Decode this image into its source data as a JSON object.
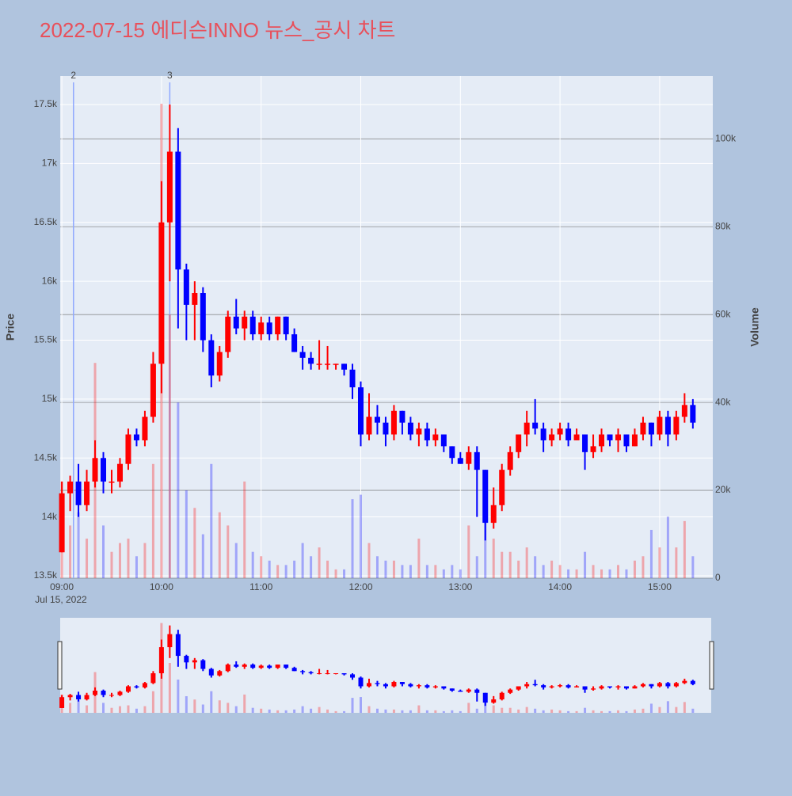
{
  "chart_data": {
    "type": "candlestick",
    "title": "2022-07-15 에디슨INNO 뉴스_공시 차트",
    "y_label": "Price",
    "y2_label": "Volume",
    "x_date_label": "Jul 15, 2022",
    "increasing_color": "#ff0000",
    "decreasing_color": "#0000ff",
    "grid": true,
    "range_slider": true,
    "xlim": [
      "2022-07-15 08:59",
      "2022-07-15 15:32"
    ],
    "xticks": [
      {
        "value": "2022-07-15 09:00",
        "label": "09:00"
      },
      {
        "value": "2022-07-15 10:00",
        "label": "10:00"
      },
      {
        "value": "2022-07-15 11:00",
        "label": "11:00"
      },
      {
        "value": "2022-07-15 12:00",
        "label": "12:00"
      },
      {
        "value": "2022-07-15 13:00",
        "label": "13:00"
      },
      {
        "value": "2022-07-15 14:00",
        "label": "14:00"
      },
      {
        "value": "2022-07-15 15:00",
        "label": "15:00"
      }
    ],
    "ylim": [
      13480,
      17742
    ],
    "yticks": [
      {
        "value": 13500,
        "label": "13.5k"
      },
      {
        "value": 14000,
        "label": "14k"
      },
      {
        "value": 14500,
        "label": "14.5k"
      },
      {
        "value": 15000,
        "label": "15k"
      },
      {
        "value": 15500,
        "label": "15.5k"
      },
      {
        "value": 16000,
        "label": "16k"
      },
      {
        "value": 16500,
        "label": "16.5k"
      },
      {
        "value": 17000,
        "label": "17k"
      },
      {
        "value": 17500,
        "label": "17.5k"
      }
    ],
    "y2lim": [
      0,
      114300
    ],
    "y2ticks": [
      0,
      {
        "value": 20000,
        "label": "20k"
      },
      {
        "value": 40000,
        "label": "40k"
      },
      {
        "value": 60000,
        "label": "60k"
      },
      {
        "value": 80000,
        "label": "80k"
      },
      {
        "value": 100000,
        "label": "100k"
      }
    ],
    "annotations": [
      {
        "x": "2022-07-15 09:07",
        "label": "2"
      },
      {
        "x": "2022-07-15 10:05",
        "label": "3"
      }
    ],
    "x": [
      "2022-07-15 09:00",
      "2022-07-15 09:05",
      "2022-07-15 09:10",
      "2022-07-15 09:15",
      "2022-07-15 09:20",
      "2022-07-15 09:25",
      "2022-07-15 09:30",
      "2022-07-15 09:35",
      "2022-07-15 09:40",
      "2022-07-15 09:45",
      "2022-07-15 09:50",
      "2022-07-15 09:55",
      "2022-07-15 10:00",
      "2022-07-15 10:05",
      "2022-07-15 10:10",
      "2022-07-15 10:15",
      "2022-07-15 10:20",
      "2022-07-15 10:25",
      "2022-07-15 10:30",
      "2022-07-15 10:35",
      "2022-07-15 10:40",
      "2022-07-15 10:45",
      "2022-07-15 10:50",
      "2022-07-15 10:55",
      "2022-07-15 11:00",
      "2022-07-15 11:05",
      "2022-07-15 11:10",
      "2022-07-15 11:15",
      "2022-07-15 11:20",
      "2022-07-15 11:25",
      "2022-07-15 11:30",
      "2022-07-15 11:35",
      "2022-07-15 11:40",
      "2022-07-15 11:45",
      "2022-07-15 11:50",
      "2022-07-15 11:55",
      "2022-07-15 12:00",
      "2022-07-15 12:05",
      "2022-07-15 12:10",
      "2022-07-15 12:15",
      "2022-07-15 12:20",
      "2022-07-15 12:25",
      "2022-07-15 12:30",
      "2022-07-15 12:35",
      "2022-07-15 12:40",
      "2022-07-15 12:45",
      "2022-07-15 12:50",
      "2022-07-15 12:55",
      "2022-07-15 13:00",
      "2022-07-15 13:05",
      "2022-07-15 13:10",
      "2022-07-15 13:15",
      "2022-07-15 13:20",
      "2022-07-15 13:25",
      "2022-07-15 13:30",
      "2022-07-15 13:35",
      "2022-07-15 13:40",
      "2022-07-15 13:45",
      "2022-07-15 13:50",
      "2022-07-15 13:55",
      "2022-07-15 14:00",
      "2022-07-15 14:05",
      "2022-07-15 14:10",
      "2022-07-15 14:15",
      "2022-07-15 14:20",
      "2022-07-15 14:25",
      "2022-07-15 14:30",
      "2022-07-15 14:35",
      "2022-07-15 14:40",
      "2022-07-15 14:45",
      "2022-07-15 14:50",
      "2022-07-15 14:55",
      "2022-07-15 15:00",
      "2022-07-15 15:05",
      "2022-07-15 15:10",
      "2022-07-15 15:15",
      "2022-07-15 15:20"
    ],
    "open": [
      13700,
      14200,
      14300,
      14100,
      14300,
      14500,
      14300,
      14300,
      14450,
      14700,
      14650,
      14850,
      15300,
      16500,
      17100,
      16100,
      15800,
      15900,
      15500,
      15200,
      15400,
      15700,
      15600,
      15700,
      15550,
      15650,
      15550,
      15700,
      15550,
      15400,
      15350,
      15300,
      15300,
      15300,
      15300,
      15250,
      15100,
      14700,
      14850,
      14800,
      14700,
      14900,
      14800,
      14700,
      14750,
      14650,
      14700,
      14600,
      14500,
      14450,
      14550,
      14400,
      13950,
      14100,
      14400,
      14550,
      14700,
      14800,
      14750,
      14650,
      14700,
      14750,
      14650,
      14700,
      14550,
      14600,
      14700,
      14650,
      14700,
      14600,
      14700,
      14800,
      14700,
      14850,
      14700,
      14850,
      14950
    ],
    "high": [
      14300,
      14350,
      14450,
      14400,
      14650,
      14550,
      14400,
      14500,
      14750,
      14750,
      14900,
      15400,
      16850,
      17500,
      17300,
      16150,
      16000,
      15950,
      15550,
      15450,
      15750,
      15850,
      15750,
      15750,
      15700,
      15700,
      15700,
      15700,
      15600,
      15450,
      15400,
      15500,
      15450,
      15300,
      15300,
      15300,
      15150,
      15050,
      14950,
      14850,
      14950,
      14900,
      14850,
      14800,
      14800,
      14750,
      14700,
      14600,
      14550,
      14600,
      14600,
      14400,
      14250,
      14450,
      14600,
      14700,
      14900,
      15000,
      14800,
      14750,
      14800,
      14800,
      14750,
      14700,
      14700,
      14750,
      14700,
      14750,
      14700,
      14750,
      14850,
      14800,
      14900,
      14900,
      14900,
      15050,
      15000
    ],
    "low": [
      13700,
      14050,
      14000,
      14050,
      14250,
      14200,
      14200,
      14250,
      14400,
      14600,
      14600,
      14800,
      15050,
      16000,
      15600,
      15500,
      15500,
      15400,
      15100,
      15150,
      15350,
      15550,
      15500,
      15500,
      15500,
      15500,
      15500,
      15500,
      15400,
      15250,
      15250,
      15250,
      15250,
      15250,
      15200,
      15000,
      14600,
      14650,
      14700,
      14600,
      14650,
      14700,
      14650,
      14600,
      14600,
      14600,
      14550,
      14450,
      14450,
      14400,
      14000,
      13800,
      13900,
      14050,
      14350,
      14500,
      14600,
      14700,
      14550,
      14600,
      14650,
      14600,
      14650,
      14400,
      14500,
      14550,
      14600,
      14550,
      14550,
      14600,
      14650,
      14600,
      14650,
      14600,
      14650,
      14800,
      14750
    ],
    "close": [
      14200,
      14300,
      14100,
      14300,
      14500,
      14300,
      14300,
      14450,
      14700,
      14650,
      14850,
      15300,
      16500,
      17100,
      16100,
      15800,
      15900,
      15500,
      15200,
      15400,
      15700,
      15600,
      15700,
      15550,
      15650,
      15550,
      15700,
      15550,
      15400,
      15350,
      15300,
      15300,
      15300,
      15300,
      15250,
      15100,
      14700,
      14850,
      14800,
      14700,
      14900,
      14800,
      14700,
      14750,
      14650,
      14700,
      14600,
      14500,
      14450,
      14550,
      14400,
      13950,
      14100,
      14400,
      14550,
      14700,
      14800,
      14750,
      14650,
      14700,
      14750,
      14650,
      14700,
      14550,
      14600,
      14700,
      14650,
      14700,
      14600,
      14700,
      14800,
      14700,
      14850,
      14700,
      14850,
      14950,
      14800
    ],
    "volume": [
      22000,
      12000,
      15000,
      9000,
      49000,
      12000,
      6000,
      8000,
      9000,
      5000,
      8000,
      26000,
      108000,
      60000,
      40000,
      20000,
      16000,
      10000,
      26000,
      15000,
      12000,
      8000,
      22000,
      6000,
      5000,
      4000,
      3000,
      3000,
      4000,
      8000,
      5000,
      7000,
      4000,
      2000,
      2000,
      18000,
      19000,
      8000,
      5000,
      4000,
      4000,
      3000,
      3000,
      9000,
      3000,
      3000,
      2000,
      3000,
      2000,
      12000,
      5000,
      20000,
      9000,
      6000,
      6000,
      4000,
      7000,
      5000,
      3000,
      4000,
      3000,
      2000,
      2000,
      6000,
      3000,
      2000,
      2000,
      3000,
      2000,
      4000,
      5000,
      11000,
      7000,
      14000,
      7000,
      13000,
      5000
    ]
  }
}
